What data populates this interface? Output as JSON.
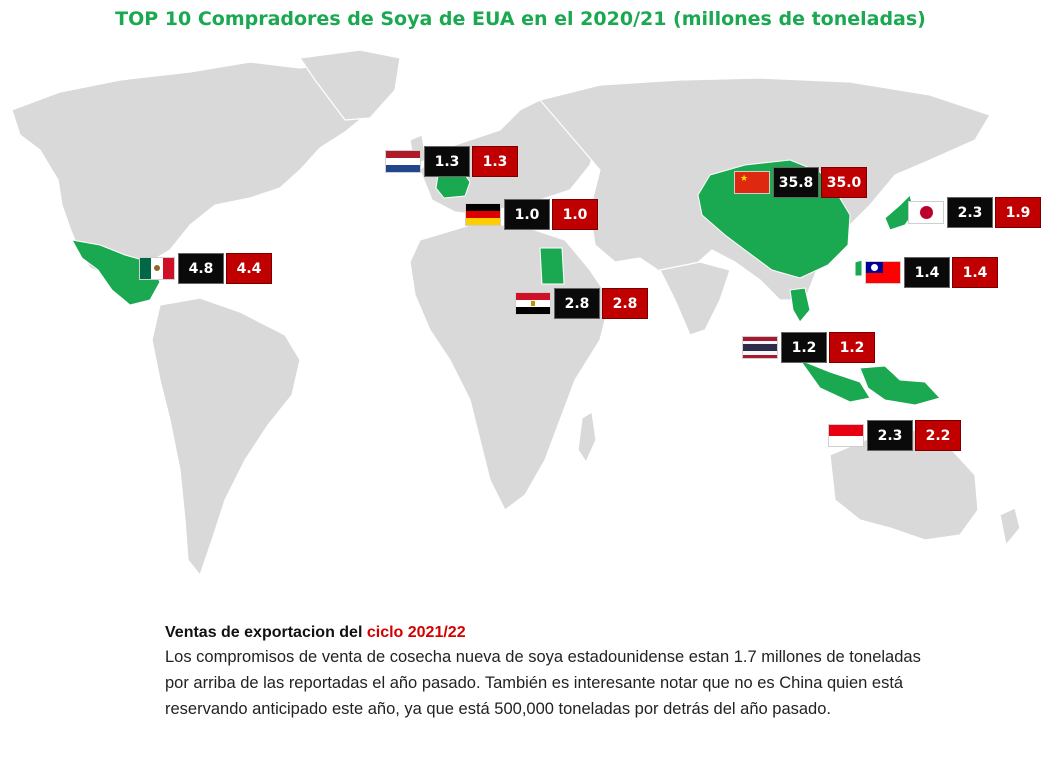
{
  "title": "TOP 10 Compradores de Soya de EUA en el 2020/21 (millones de toneladas)",
  "colors": {
    "title": "#1aa851",
    "land": "#d9d9d9",
    "highlight": "#1aa851",
    "box_prev": "#0a0a0a",
    "box_curr": "#c00000"
  },
  "countries": [
    {
      "id": "netherlands",
      "flag": "netherlands-flag",
      "v1": "1.3",
      "v2": "1.3"
    },
    {
      "id": "china",
      "flag": "china-flag",
      "v1": "35.8",
      "v2": "35.0"
    },
    {
      "id": "germany",
      "flag": "germany-flag",
      "v1": "1.0",
      "v2": "1.0"
    },
    {
      "id": "japan",
      "flag": "japan-flag",
      "v1": "2.3",
      "v2": "1.9"
    },
    {
      "id": "mexico",
      "flag": "mexico-flag",
      "v1": "4.8",
      "v2": "4.4"
    },
    {
      "id": "taiwan",
      "flag": "taiwan-flag",
      "v1": "1.4",
      "v2": "1.4"
    },
    {
      "id": "egypt",
      "flag": "egypt-flag",
      "v1": "2.8",
      "v2": "2.8"
    },
    {
      "id": "thailand",
      "flag": "thailand-flag",
      "v1": "1.2",
      "v2": "1.2"
    },
    {
      "id": "indonesia",
      "flag": "indonesia-flag",
      "v1": "2.3",
      "v2": "2.2"
    }
  ],
  "note": {
    "heading_main": "Ventas de exportacion del ",
    "heading_red": "ciclo 2021/22",
    "body": "Los compromisos de venta de cosecha nueva de soya estadounidense estan 1.7 millones de toneladas por arriba de las reportadas el año pasado. También es interesante notar que no es China quien está reservando anticipado este año, ya que está 500,000 toneladas por detrás del año pasado."
  }
}
